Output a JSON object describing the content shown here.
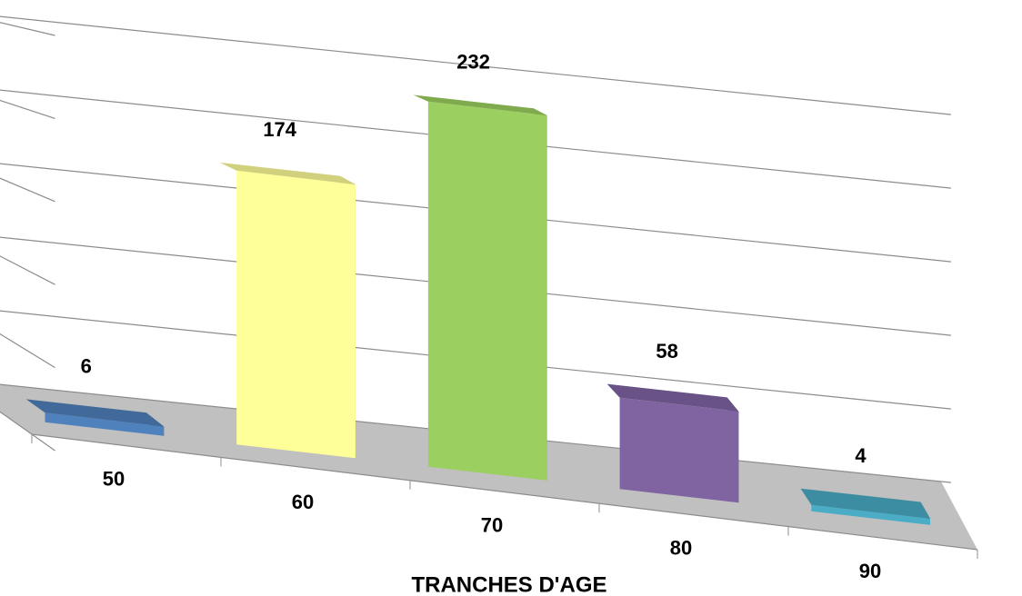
{
  "chart_data": {
    "type": "bar3d",
    "categories": [
      "50",
      "60",
      "70",
      "80",
      "90"
    ],
    "values": [
      6,
      174,
      232,
      58,
      4
    ],
    "colors": [
      "#4f81bd",
      "#ffff99",
      "#9bcf5f",
      "#8064a2",
      "#4bacc6"
    ],
    "ylim": [
      0,
      250
    ],
    "yticks": [
      0,
      50,
      100,
      150,
      200,
      250
    ],
    "grid": true,
    "x_label": "TRANCHES D'AGE"
  }
}
